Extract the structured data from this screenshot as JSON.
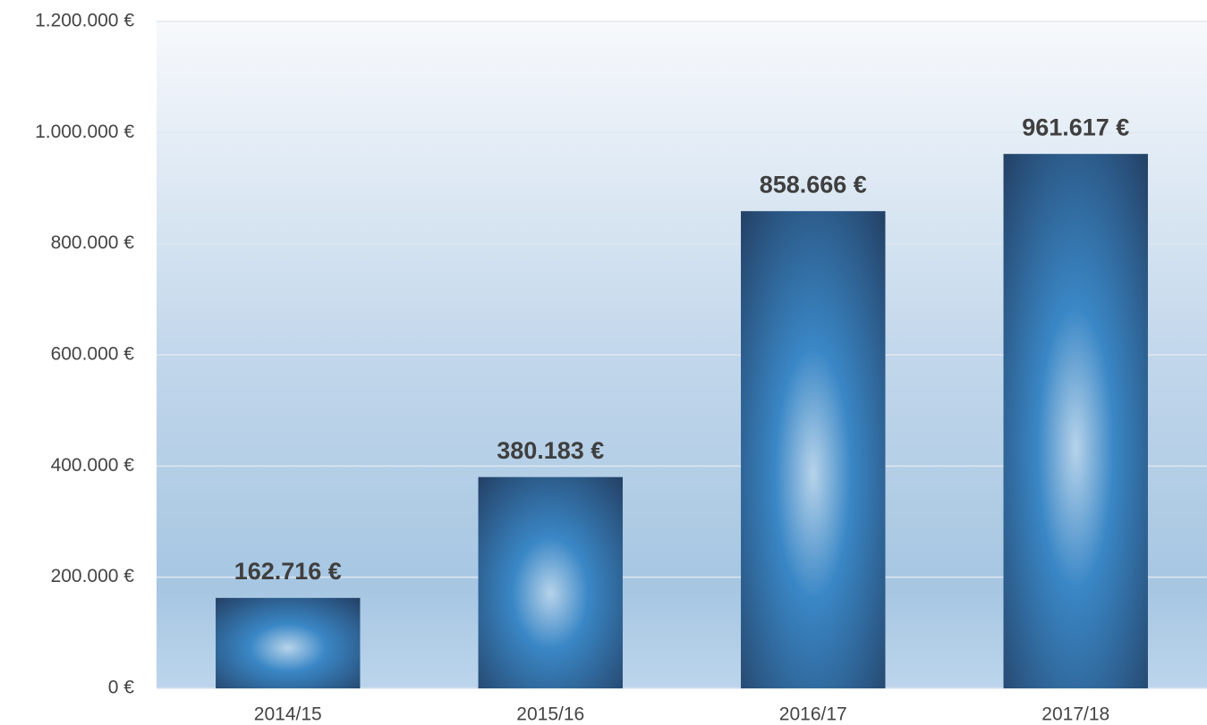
{
  "chart_data": {
    "type": "bar",
    "categories": [
      "2014/15",
      "2015/16",
      "2016/17",
      "2017/18"
    ],
    "values": [
      162716,
      380183,
      858666,
      961617
    ],
    "value_labels": [
      "162.716 €",
      "380.183 €",
      "858.666 €",
      "961.617 €"
    ],
    "color": "#3a87c6",
    "ylim": [
      0,
      1200000
    ],
    "yticks": [
      {
        "value": 0,
        "label": "0 €"
      },
      {
        "value": 200000,
        "label": "200.000 €"
      },
      {
        "value": 400000,
        "label": "400.000 €"
      },
      {
        "value": 600000,
        "label": "600.000 €"
      },
      {
        "value": 800000,
        "label": "800.000 €"
      },
      {
        "value": 1000000,
        "label": "1.000.000 €"
      },
      {
        "value": 1200000,
        "label": "1.200.000 €"
      }
    ],
    "grid": true
  }
}
